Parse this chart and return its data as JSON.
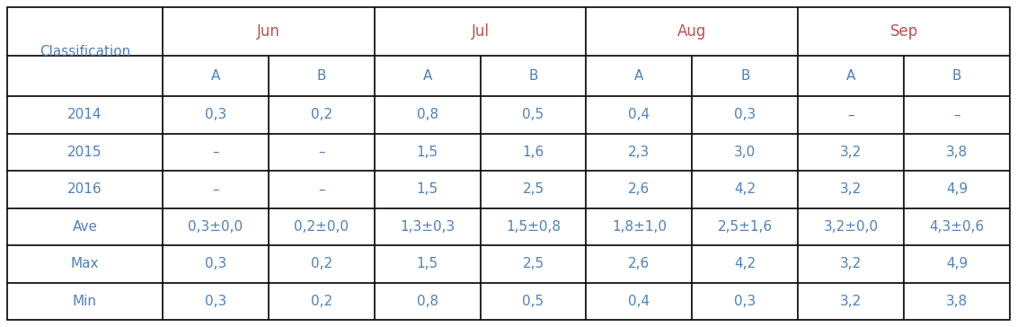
{
  "col_groups": [
    "Jun",
    "Jul",
    "Aug",
    "Sep"
  ],
  "sub_cols": [
    "A",
    "B"
  ],
  "row_header_labels": [
    "2014",
    "2015",
    "2016",
    "Ave",
    "Max",
    "Min"
  ],
  "cell_data": [
    [
      "0,3",
      "0,2",
      "0,8",
      "0,5",
      "0,4",
      "0,3",
      "–",
      "–"
    ],
    [
      "–",
      "–",
      "1,5",
      "1,6",
      "2,3",
      "3,0",
      "3,2",
      "3,8"
    ],
    [
      "–",
      "–",
      "1,5",
      "2,5",
      "2,6",
      "4,2",
      "3,2",
      "4,9"
    ],
    [
      "0,3±0,0",
      "0,2±0,0",
      "1,3±0,3",
      "1,5±0,8",
      "1,8±1,0",
      "2,5±1,6",
      "3,2±0,0",
      "4,3±0,6"
    ],
    [
      "0,3",
      "0,2",
      "1,5",
      "2,5",
      "2,6",
      "4,2",
      "3,2",
      "4,9"
    ],
    [
      "0,3",
      "0,2",
      "0,8",
      "0,5",
      "0,4",
      "0,3",
      "3,2",
      "3,8"
    ]
  ],
  "bg_color": "#ffffff",
  "border_color": "#000000",
  "month_color": "#c0504d",
  "text_color": "#4f81bd",
  "header_ab_color": "#4f81bd",
  "row_label_color": "#4f81bd",
  "font_size": 11,
  "header_font_size": 11,
  "month_font_size": 12
}
